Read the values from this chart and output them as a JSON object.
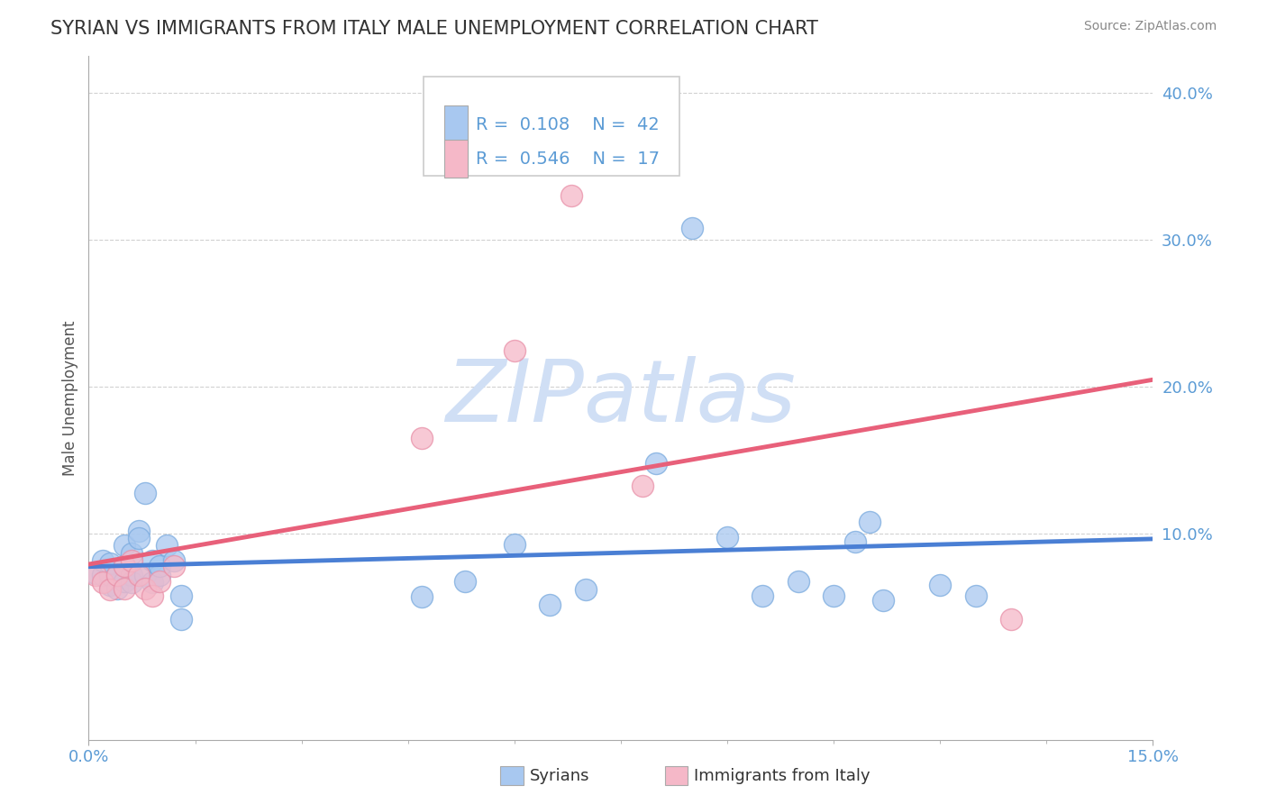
{
  "title": "SYRIAN VS IMMIGRANTS FROM ITALY MALE UNEMPLOYMENT CORRELATION CHART",
  "source": "Source: ZipAtlas.com",
  "ylabel_label": "Male Unemployment",
  "xlim": [
    0.0,
    0.15
  ],
  "ylim": [
    -0.04,
    0.425
  ],
  "series1_name": "Syrians",
  "series1_color": "#a8c8f0",
  "series1_edge_color": "#7aaade",
  "series1_line_color": "#4a7fd4",
  "series1_R": 0.108,
  "series1_N": 42,
  "series2_name": "Immigrants from Italy",
  "series2_color": "#f5b8c8",
  "series2_edge_color": "#e890a8",
  "series2_line_color": "#e8607a",
  "series2_R": 0.546,
  "series2_N": 17,
  "background_color": "#ffffff",
  "watermark": "ZIPatlas",
  "watermark_color": "#d0dff5",
  "grid_color": "#cccccc",
  "title_color": "#333333",
  "axis_label_color": "#5b9bd5",
  "legend_text_color": "#5b9bd5",
  "syrians_x": [
    0.001,
    0.002,
    0.002,
    0.003,
    0.003,
    0.003,
    0.004,
    0.004,
    0.005,
    0.005,
    0.005,
    0.006,
    0.006,
    0.006,
    0.007,
    0.007,
    0.008,
    0.008,
    0.009,
    0.009,
    0.01,
    0.01,
    0.011,
    0.012,
    0.013,
    0.013,
    0.047,
    0.053,
    0.06,
    0.065,
    0.07,
    0.08,
    0.085,
    0.09,
    0.095,
    0.1,
    0.105,
    0.108,
    0.11,
    0.112,
    0.12,
    0.125
  ],
  "syrians_y": [
    0.073,
    0.072,
    0.082,
    0.065,
    0.072,
    0.08,
    0.063,
    0.072,
    0.068,
    0.078,
    0.092,
    0.072,
    0.067,
    0.087,
    0.102,
    0.097,
    0.128,
    0.072,
    0.082,
    0.067,
    0.072,
    0.078,
    0.092,
    0.082,
    0.042,
    0.058,
    0.057,
    0.068,
    0.093,
    0.052,
    0.062,
    0.148,
    0.308,
    0.098,
    0.058,
    0.068,
    0.058,
    0.095,
    0.108,
    0.055,
    0.065,
    0.058
  ],
  "italy_x": [
    0.001,
    0.002,
    0.003,
    0.004,
    0.005,
    0.005,
    0.006,
    0.007,
    0.008,
    0.009,
    0.01,
    0.012,
    0.047,
    0.06,
    0.068,
    0.078,
    0.13
  ],
  "italy_y": [
    0.072,
    0.067,
    0.062,
    0.072,
    0.078,
    0.063,
    0.082,
    0.072,
    0.063,
    0.058,
    0.068,
    0.078,
    0.165,
    0.225,
    0.33,
    0.133,
    0.042
  ]
}
